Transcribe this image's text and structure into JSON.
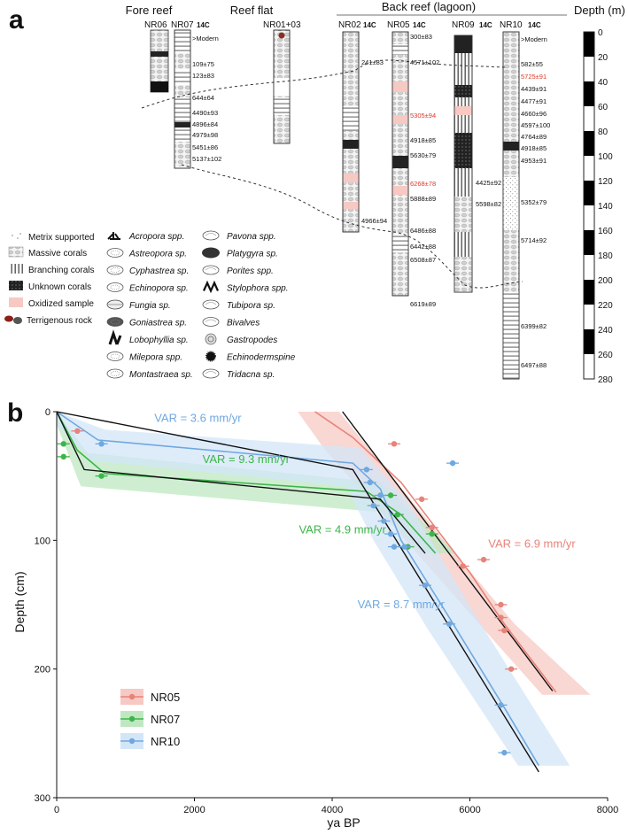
{
  "panel_a": {
    "label": "a",
    "sections": {
      "fore_reef": "Fore reef",
      "reef_flat": "Reef flat",
      "back_reef": "Back reef (lagoon)",
      "depth_title": "Depth (m)"
    },
    "cores": [
      {
        "name": "NR06",
        "c14": "",
        "ages": []
      },
      {
        "name": "NR07",
        "c14": "14C",
        "ages": [
          ">Modern",
          "109±75",
          "123±83",
          "644±64",
          "4490±93",
          "4896±84",
          "4979±98",
          "5451±86",
          "5137±102"
        ]
      },
      {
        "name": "NR01+03",
        "c14": "",
        "ages": []
      },
      {
        "name": "NR02",
        "c14": "14C",
        "ages": [
          "241±83",
          "4966±94"
        ]
      },
      {
        "name": "NR05",
        "c14": "14C",
        "ages": [
          "300±83",
          "4571±102",
          "5305±94",
          "4918±85",
          "5630±79",
          "6268±78",
          "5888±89",
          "6486±88",
          "6442±88",
          "6508±87",
          "6619±89"
        ]
      },
      {
        "name": "NR09",
        "c14": "14C",
        "ages": [
          "4425±92",
          "5598±82"
        ]
      },
      {
        "name": "NR10",
        "c14": "14C",
        "ages": [
          ">Modern",
          "582±55",
          "5725±91",
          "4439±91",
          "4477±91",
          "4660±96",
          "4597±100",
          "4764±89",
          "4918±85",
          "4953±91",
          "5352±79",
          "5714±92",
          "6399±82",
          "6497±88"
        ]
      }
    ],
    "highlight_ages": [
      "5725±91",
      "5305±94",
      "6268±78"
    ],
    "depth_ticks": [
      "0",
      "20",
      "40",
      "60",
      "80",
      "100",
      "120",
      "140",
      "160",
      "180",
      "200",
      "220",
      "240",
      "260",
      "280"
    ],
    "legend_col1": [
      "Metrix supported",
      "Massive corals",
      "Branching corals",
      "Unknown corals",
      "Oxidized sample",
      "Terrigenous rock"
    ],
    "legend_col2": [
      "Acropora spp.",
      "Astreopora sp.",
      "Cyphastrea sp.",
      "Echinopora sp.",
      "Fungia sp.",
      "Goniastrea sp.",
      "Lobophyllia sp.",
      "Milepora spp.",
      "Montastraea sp."
    ],
    "legend_col3": [
      "Pavona spp.",
      "Platygyra sp.",
      "Porites spp.",
      "Stylophora spp.",
      "Tubipora sp.",
      "Bivalves",
      "Gastropodes",
      "Echinodermspine",
      "Tridacna sp."
    ]
  },
  "chart_data": {
    "type": "scatter",
    "panel_label": "b",
    "xlabel": "ya BP",
    "ylabel": "Depth (cm)",
    "xlim": [
      0,
      8000
    ],
    "ylim": [
      300,
      0
    ],
    "xticks": [
      0,
      2000,
      4000,
      6000,
      8000
    ],
    "yticks": [
      0,
      100,
      200,
      300
    ],
    "legend": [
      "NR05",
      "NR07",
      "NR10"
    ],
    "series": [
      {
        "name": "NR05",
        "color": "#e8837a",
        "band": "#f7c9c3",
        "points": [
          [
            300,
            15
          ],
          [
            4900,
            25
          ],
          [
            5300,
            68
          ],
          [
            5450,
            90
          ],
          [
            5900,
            120
          ],
          [
            6200,
            115
          ],
          [
            6450,
            150
          ],
          [
            6450,
            160
          ],
          [
            6500,
            170
          ],
          [
            6600,
            200
          ]
        ],
        "fit": [
          [
            3750,
            0
          ],
          [
            4300,
            20
          ],
          [
            5000,
            55
          ],
          [
            5500,
            90
          ],
          [
            6000,
            125
          ],
          [
            6500,
            165
          ],
          [
            7250,
            218
          ]
        ],
        "trend": [
          [
            4150,
            0
          ],
          [
            7200,
            217
          ]
        ],
        "band_poly": [
          [
            3500,
            0
          ],
          [
            4100,
            0
          ],
          [
            5700,
            105
          ],
          [
            6650,
            165
          ],
          [
            7750,
            220
          ],
          [
            7050,
            220
          ],
          [
            6050,
            160
          ],
          [
            5150,
            105
          ],
          [
            3900,
            30
          ]
        ]
      },
      {
        "name": "NR07",
        "color": "#3cb54a",
        "band": "#bfe8c2",
        "points": [
          [
            100,
            25
          ],
          [
            100,
            35
          ],
          [
            650,
            50
          ],
          [
            4850,
            65
          ],
          [
            4950,
            80
          ],
          [
            5100,
            105
          ],
          [
            5450,
            95
          ]
        ],
        "fit": [
          [
            0,
            0
          ],
          [
            300,
            30
          ],
          [
            700,
            48
          ],
          [
            4500,
            62
          ],
          [
            5000,
            80
          ],
          [
            5500,
            110
          ]
        ],
        "trend": [
          [
            0,
            0
          ],
          [
            400,
            45
          ],
          [
            4700,
            68
          ],
          [
            5350,
            110
          ]
        ],
        "band_poly": [
          [
            0,
            0
          ],
          [
            450,
            32
          ],
          [
            4700,
            55
          ],
          [
            5800,
            110
          ],
          [
            5300,
            110
          ],
          [
            4700,
            78
          ],
          [
            350,
            58
          ],
          [
            0,
            10
          ]
        ]
      },
      {
        "name": "NR10",
        "color": "#6fa8e0",
        "band": "#d3e6f8",
        "points": [
          [
            650,
            25
          ],
          [
            5750,
            40
          ],
          [
            4500,
            45
          ],
          [
            4550,
            55
          ],
          [
            4700,
            65
          ],
          [
            4600,
            73
          ],
          [
            4750,
            85
          ],
          [
            4850,
            95
          ],
          [
            4900,
            105
          ],
          [
            5050,
            105
          ],
          [
            5350,
            135
          ],
          [
            5700,
            165
          ],
          [
            6450,
            228
          ],
          [
            6500,
            265
          ]
        ],
        "fit": [
          [
            0,
            0
          ],
          [
            600,
            22
          ],
          [
            4300,
            40
          ],
          [
            4700,
            60
          ],
          [
            5000,
            100
          ],
          [
            5700,
            160
          ],
          [
            6500,
            230
          ],
          [
            7000,
            275
          ]
        ],
        "trend": [
          [
            0,
            0
          ],
          [
            4300,
            45
          ],
          [
            7000,
            280
          ]
        ],
        "band_poly": [
          [
            0,
            0
          ],
          [
            700,
            14
          ],
          [
            4400,
            28
          ],
          [
            5100,
            70
          ],
          [
            6100,
            160
          ],
          [
            7450,
            275
          ],
          [
            6700,
            275
          ],
          [
            5400,
            170
          ],
          [
            4600,
            100
          ],
          [
            4200,
            58
          ],
          [
            500,
            38
          ],
          [
            0,
            10
          ]
        ]
      }
    ],
    "annotations": [
      {
        "text": "VAR = 3.6 mm/yr",
        "series": "NR10",
        "x": 2050,
        "y": 5
      },
      {
        "text": "VAR = 9.3 mm/yr",
        "series": "NR07",
        "x": 2750,
        "y": 37
      },
      {
        "text": "VAR = 4.9 mm/yr",
        "series": "NR07",
        "x": 4150,
        "y": 92
      },
      {
        "text": "VAR = 6.9 mm/yr",
        "series": "NR05",
        "x": 6900,
        "y": 103
      },
      {
        "text": "VAR = 8.7 mm/yr",
        "series": "NR10",
        "x": 5000,
        "y": 150
      }
    ]
  }
}
